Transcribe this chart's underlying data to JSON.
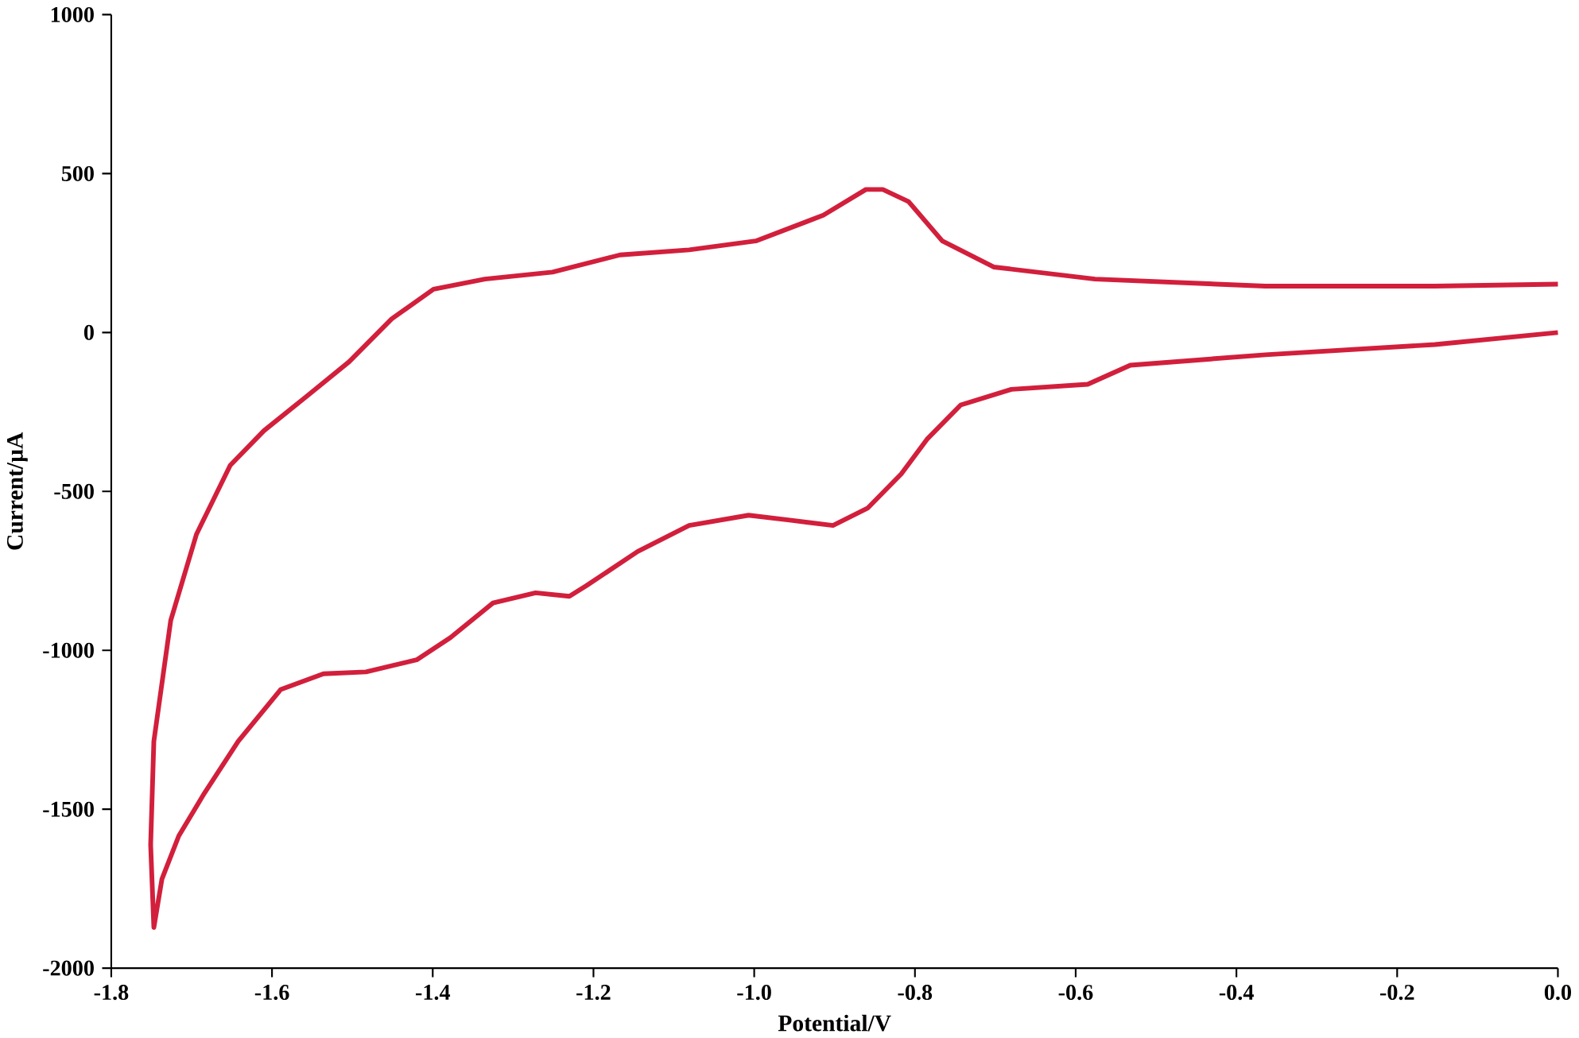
{
  "chart_data": {
    "type": "line",
    "xlabel": "Potential/V",
    "ylabel": "Current/µA",
    "x": [
      0,
      -0.153,
      -0.364,
      -0.532,
      -0.585,
      -0.68,
      -0.743,
      -0.785,
      -0.817,
      -0.859,
      -0.902,
      -0.954,
      -1.007,
      -1.081,
      -1.145,
      -1.209,
      -1.23,
      -1.272,
      -1.325,
      -1.378,
      -1.42,
      -1.483,
      -1.536,
      -1.589,
      -1.642,
      -1.684,
      -1.716,
      -1.737,
      -1.747,
      -1.751,
      -1.747,
      -1.726,
      -1.694,
      -1.652,
      -1.61,
      -1.557,
      -1.504,
      -1.451,
      -1.399,
      -1.335,
      -1.251,
      -1.167,
      -1.081,
      -0.998,
      -0.914,
      -0.861,
      -0.84,
      -0.808,
      -0.766,
      -0.702,
      -0.576,
      -0.364,
      -0.153,
      0
    ],
    "series": [
      {
        "color": "#d21f3c",
        "values": [
          0,
          -38,
          -70,
          -103,
          -163,
          -179,
          -228,
          -336,
          -445,
          -553,
          -607,
          -591,
          -575,
          -607,
          -689,
          -797,
          -830,
          -819,
          -851,
          -960,
          -1030,
          -1068,
          -1074,
          -1123,
          -1286,
          -1449,
          -1584,
          -1720,
          -1872,
          -1612,
          -1286,
          -906,
          -635,
          -418,
          -309,
          -201,
          -92,
          43,
          136,
          168,
          190,
          244,
          260,
          288,
          369,
          450,
          450,
          412,
          288,
          206,
          168,
          146,
          146,
          152
        ]
      }
    ],
    "xlim": [
      -1.8,
      0
    ],
    "ylim": [
      -2000,
      1000
    ],
    "xticks": [
      -1.8,
      -1.6,
      -1.4,
      -1.2,
      {
        "value": -1,
        "label": "-1.0"
      },
      -0.8,
      -0.6,
      -0.4,
      -0.2,
      {
        "value": 0,
        "label": "0.0"
      }
    ],
    "yticks": [
      -2000,
      -1500,
      -1000,
      -500,
      0,
      500,
      1000
    ],
    "marker": "none",
    "line_style": "solid"
  }
}
